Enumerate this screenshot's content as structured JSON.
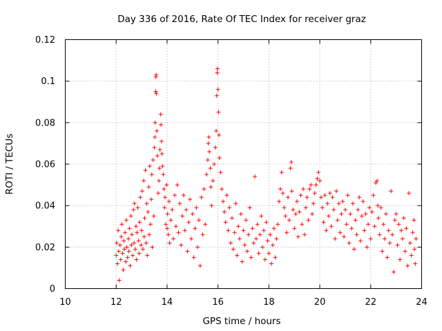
{
  "chart_data": {
    "type": "scatter",
    "title": "Day 336 of 2016, Rate Of TEC Index for receiver graz",
    "xlabel": "GPS time / hours",
    "ylabel": "ROTI / TECUs",
    "xlim": [
      10,
      24
    ],
    "ylim": [
      0,
      0.12
    ],
    "xticks": [
      "10",
      "12",
      "14",
      "16",
      "18",
      "20",
      "22",
      "24"
    ],
    "yticks": [
      "0",
      "0.02",
      "0.04",
      "0.06",
      "0.08",
      "0.1",
      "0.12"
    ],
    "grid": true,
    "marker": "plus",
    "color": "#ff0000",
    "series": [
      {
        "points": [
          [
            12.0,
            0.016
          ],
          [
            12.02,
            0.022
          ],
          [
            12.05,
            0.012
          ],
          [
            12.08,
            0.028
          ],
          [
            12.1,
            0.018
          ],
          [
            12.12,
            0.004
          ],
          [
            12.15,
            0.021
          ],
          [
            12.18,
            0.014
          ],
          [
            12.2,
            0.025
          ],
          [
            12.22,
            0.031
          ],
          [
            12.25,
            0.017
          ],
          [
            12.28,
            0.009
          ],
          [
            12.3,
            0.023
          ],
          [
            12.32,
            0.019
          ],
          [
            12.35,
            0.027
          ],
          [
            12.38,
            0.013
          ],
          [
            12.4,
            0.033
          ],
          [
            12.42,
            0.02
          ],
          [
            12.45,
            0.015
          ],
          [
            12.48,
            0.024
          ],
          [
            12.5,
            0.018
          ],
          [
            12.52,
            0.029
          ],
          [
            12.55,
            0.011
          ],
          [
            12.58,
            0.035
          ],
          [
            12.6,
            0.021
          ],
          [
            12.62,
            0.026
          ],
          [
            12.65,
            0.016
          ],
          [
            12.68,
            0.038
          ],
          [
            12.7,
            0.022
          ],
          [
            12.72,
            0.041
          ],
          [
            12.75,
            0.019
          ],
          [
            12.78,
            0.03
          ],
          [
            12.8,
            0.014
          ],
          [
            12.82,
            0.027
          ],
          [
            12.85,
            0.039
          ],
          [
            12.88,
            0.023
          ],
          [
            12.9,
            0.017
          ],
          [
            12.92,
            0.032
          ],
          [
            12.95,
            0.044
          ],
          [
            12.98,
            0.021
          ],
          [
            13.0,
            0.028
          ],
          [
            13.02,
            0.047
          ],
          [
            13.05,
            0.019
          ],
          [
            13.08,
            0.052
          ],
          [
            13.1,
            0.025
          ],
          [
            13.12,
            0.034
          ],
          [
            13.15,
            0.057
          ],
          [
            13.18,
            0.022
          ],
          [
            13.2,
            0.041
          ],
          [
            13.22,
            0.016
          ],
          [
            13.25,
            0.037
          ],
          [
            13.28,
            0.049
          ],
          [
            13.3,
            0.026
          ],
          [
            13.32,
            0.059
          ],
          [
            13.35,
            0.031
          ],
          [
            13.38,
            0.043
          ],
          [
            13.4,
            0.055
          ],
          [
            13.42,
            0.02
          ],
          [
            13.45,
            0.062
          ],
          [
            13.48,
            0.035
          ],
          [
            13.5,
            0.068
          ],
          [
            13.52,
            0.073
          ],
          [
            13.53,
            0.08
          ],
          [
            13.55,
            0.095
          ],
          [
            13.56,
            0.102
          ],
          [
            13.57,
            0.103
          ],
          [
            13.58,
            0.094
          ],
          [
            13.6,
            0.076
          ],
          [
            13.62,
            0.064
          ],
          [
            13.65,
            0.046
          ],
          [
            13.68,
            0.052
          ],
          [
            13.7,
            0.058
          ],
          [
            13.72,
            0.067
          ],
          [
            13.75,
            0.084
          ],
          [
            13.76,
            0.079
          ],
          [
            13.78,
            0.071
          ],
          [
            13.8,
            0.065
          ],
          [
            13.82,
            0.059
          ],
          [
            13.85,
            0.055
          ],
          [
            13.88,
            0.048
          ],
          [
            13.9,
            0.039
          ],
          [
            13.92,
            0.044
          ],
          [
            13.95,
            0.031
          ],
          [
            13.98,
            0.05
          ],
          [
            14.0,
            0.029
          ],
          [
            14.02,
            0.036
          ],
          [
            14.05,
            0.026
          ],
          [
            14.08,
            0.042
          ],
          [
            14.1,
            0.022
          ],
          [
            14.15,
            0.033
          ],
          [
            14.2,
            0.038
          ],
          [
            14.25,
            0.024
          ],
          [
            14.3,
            0.045
          ],
          [
            14.35,
            0.03
          ],
          [
            14.4,
            0.05
          ],
          [
            14.45,
            0.027
          ],
          [
            14.5,
            0.041
          ],
          [
            14.55,
            0.021
          ],
          [
            14.6,
            0.035
          ],
          [
            14.65,
            0.045
          ],
          [
            14.7,
            0.028
          ],
          [
            14.75,
            0.038
          ],
          [
            14.8,
            0.018
          ],
          [
            14.85,
            0.032
          ],
          [
            14.9,
            0.043
          ],
          [
            14.95,
            0.024
          ],
          [
            15.0,
            0.036
          ],
          [
            15.05,
            0.015
          ],
          [
            15.1,
            0.029
          ],
          [
            15.15,
            0.039
          ],
          [
            15.2,
            0.02
          ],
          [
            15.25,
            0.033
          ],
          [
            15.3,
            0.011
          ],
          [
            15.35,
            0.044
          ],
          [
            15.4,
            0.026
          ],
          [
            15.45,
            0.048
          ],
          [
            15.5,
            0.031
          ],
          [
            15.55,
            0.055
          ],
          [
            15.6,
            0.062
          ],
          [
            15.62,
            0.07
          ],
          [
            15.64,
            0.073
          ],
          [
            15.66,
            0.066
          ],
          [
            15.7,
            0.058
          ],
          [
            15.72,
            0.049
          ],
          [
            15.75,
            0.04
          ],
          [
            15.8,
            0.052
          ],
          [
            15.85,
            0.06
          ],
          [
            15.9,
            0.068
          ],
          [
            15.93,
            0.076
          ],
          [
            15.95,
            0.093
          ],
          [
            15.97,
            0.104
          ],
          [
            15.98,
            0.106
          ],
          [
            16.0,
            0.096
          ],
          [
            16.02,
            0.085
          ],
          [
            16.04,
            0.074
          ],
          [
            16.06,
            0.063
          ],
          [
            16.1,
            0.056
          ],
          [
            16.15,
            0.048
          ],
          [
            16.2,
            0.042
          ],
          [
            16.25,
            0.037
          ],
          [
            16.3,
            0.032
          ],
          [
            16.35,
            0.045
          ],
          [
            16.4,
            0.028
          ],
          [
            16.45,
            0.039
          ],
          [
            16.5,
            0.022
          ],
          [
            16.55,
            0.034
          ],
          [
            16.6,
            0.019
          ],
          [
            16.65,
            0.027
          ],
          [
            16.7,
            0.041
          ],
          [
            16.75,
            0.016
          ],
          [
            16.8,
            0.03
          ],
          [
            16.85,
            0.024
          ],
          [
            16.9,
            0.036
          ],
          [
            16.95,
            0.013
          ],
          [
            17.0,
            0.028
          ],
          [
            17.05,
            0.021
          ],
          [
            17.1,
            0.033
          ],
          [
            17.15,
            0.018
          ],
          [
            17.2,
            0.026
          ],
          [
            17.25,
            0.039
          ],
          [
            17.3,
            0.015
          ],
          [
            17.35,
            0.029
          ],
          [
            17.4,
            0.022
          ],
          [
            17.45,
            0.054
          ],
          [
            17.5,
            0.024
          ],
          [
            17.55,
            0.031
          ],
          [
            17.6,
            0.017
          ],
          [
            17.65,
            0.026
          ],
          [
            17.7,
            0.035
          ],
          [
            17.75,
            0.02
          ],
          [
            17.8,
            0.028
          ],
          [
            17.85,
            0.014
          ],
          [
            17.9,
            0.032
          ],
          [
            17.95,
            0.023
          ],
          [
            18.0,
            0.017
          ],
          [
            18.05,
            0.026
          ],
          [
            18.1,
            0.012
          ],
          [
            18.15,
            0.021
          ],
          [
            18.2,
            0.029
          ],
          [
            18.25,
            0.015
          ],
          [
            18.3,
            0.024
          ],
          [
            18.35,
            0.031
          ],
          [
            18.4,
            0.042
          ],
          [
            18.45,
            0.048
          ],
          [
            18.5,
            0.056
          ],
          [
            18.55,
            0.046
          ],
          [
            18.6,
            0.039
          ],
          [
            18.65,
            0.035
          ],
          [
            18.7,
            0.027
          ],
          [
            18.75,
            0.044
          ],
          [
            18.8,
            0.033
          ],
          [
            18.85,
            0.058
          ],
          [
            18.88,
            0.061
          ],
          [
            18.9,
            0.047
          ],
          [
            18.95,
            0.038
          ],
          [
            19.0,
            0.029
          ],
          [
            19.05,
            0.036
          ],
          [
            19.1,
            0.042
          ],
          [
            19.15,
            0.025
          ],
          [
            19.2,
            0.037
          ],
          [
            19.25,
            0.045
          ],
          [
            19.3,
            0.031
          ],
          [
            19.35,
            0.048
          ],
          [
            19.4,
            0.026
          ],
          [
            19.45,
            0.039
          ],
          [
            19.5,
            0.044
          ],
          [
            19.55,
            0.033
          ],
          [
            19.6,
            0.048
          ],
          [
            19.65,
            0.05
          ],
          [
            19.7,
            0.036
          ],
          [
            19.75,
            0.041
          ],
          [
            19.8,
            0.046
          ],
          [
            19.85,
            0.05
          ],
          [
            19.9,
            0.053
          ],
          [
            19.95,
            0.056
          ],
          [
            20.0,
            0.052
          ],
          [
            20.05,
            0.044
          ],
          [
            20.1,
            0.039
          ],
          [
            20.15,
            0.032
          ],
          [
            20.2,
            0.045
          ],
          [
            20.25,
            0.028
          ],
          [
            20.3,
            0.041
          ],
          [
            20.35,
            0.035
          ],
          [
            20.4,
            0.046
          ],
          [
            20.45,
            0.03
          ],
          [
            20.5,
            0.044
          ],
          [
            20.55,
            0.038
          ],
          [
            20.6,
            0.024
          ],
          [
            20.65,
            0.047
          ],
          [
            20.7,
            0.033
          ],
          [
            20.75,
            0.041
          ],
          [
            20.8,
            0.027
          ],
          [
            20.85,
            0.036
          ],
          [
            20.9,
            0.042
          ],
          [
            20.95,
            0.025
          ],
          [
            21.0,
            0.038
          ],
          [
            21.05,
            0.031
          ],
          [
            21.1,
            0.045
          ],
          [
            21.15,
            0.022
          ],
          [
            21.2,
            0.036
          ],
          [
            21.25,
            0.029
          ],
          [
            21.3,
            0.041
          ],
          [
            21.35,
            0.019
          ],
          [
            21.4,
            0.033
          ],
          [
            21.45,
            0.026
          ],
          [
            21.5,
            0.038
          ],
          [
            21.55,
            0.044
          ],
          [
            21.6,
            0.023
          ],
          [
            21.65,
            0.035
          ],
          [
            21.7,
            0.042
          ],
          [
            21.75,
            0.028
          ],
          [
            21.8,
            0.036
          ],
          [
            21.85,
            0.02
          ],
          [
            21.9,
            0.031
          ],
          [
            21.95,
            0.039
          ],
          [
            22.0,
            0.024
          ],
          [
            22.05,
            0.037
          ],
          [
            22.1,
            0.045
          ],
          [
            22.15,
            0.03
          ],
          [
            22.2,
            0.051
          ],
          [
            22.25,
            0.052
          ],
          [
            22.28,
            0.04
          ],
          [
            22.3,
            0.034
          ],
          [
            22.35,
            0.026
          ],
          [
            22.4,
            0.039
          ],
          [
            22.45,
            0.018
          ],
          [
            22.5,
            0.031
          ],
          [
            22.55,
            0.024
          ],
          [
            22.6,
            0.036
          ],
          [
            22.65,
            0.015
          ],
          [
            22.7,
            0.028
          ],
          [
            22.75,
            0.022
          ],
          [
            22.8,
            0.047
          ],
          [
            22.85,
            0.026
          ],
          [
            22.9,
            0.008
          ],
          [
            22.95,
            0.033
          ],
          [
            23.0,
            0.036
          ],
          [
            23.05,
            0.021
          ],
          [
            23.1,
            0.031
          ],
          [
            23.15,
            0.014
          ],
          [
            23.2,
            0.028
          ],
          [
            23.25,
            0.024
          ],
          [
            23.3,
            0.034
          ],
          [
            23.35,
            0.018
          ],
          [
            23.4,
            0.029
          ],
          [
            23.45,
            0.011
          ],
          [
            23.5,
            0.046
          ],
          [
            23.55,
            0.022
          ],
          [
            23.6,
            0.016
          ],
          [
            23.65,
            0.027
          ],
          [
            23.7,
            0.033
          ],
          [
            23.72,
            0.019
          ],
          [
            23.75,
            0.012
          ],
          [
            23.78,
            0.024
          ]
        ]
      }
    ]
  }
}
